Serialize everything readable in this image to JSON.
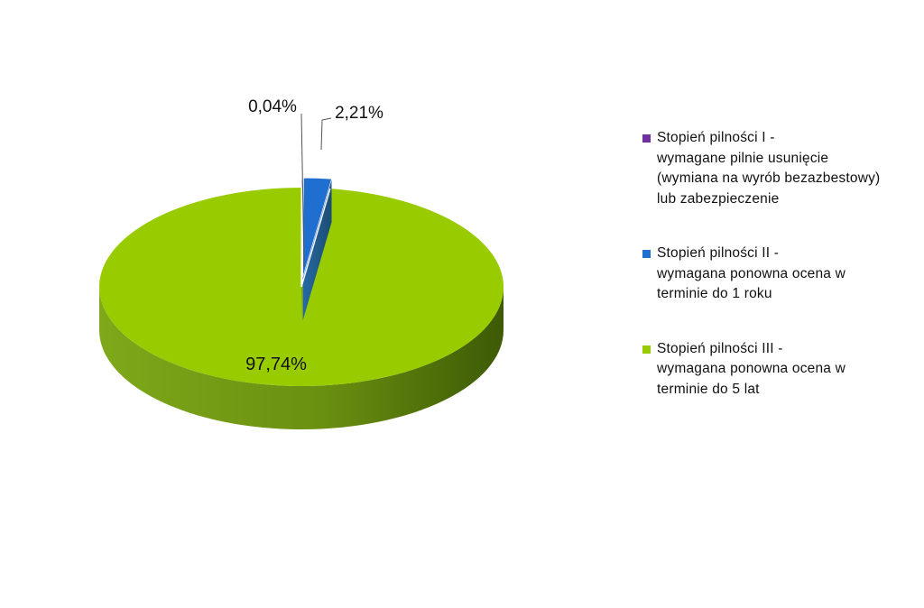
{
  "chart_data": {
    "type": "pie",
    "style": "3d-exploded",
    "categories": [
      "Stopień pilności I -\nwymagane pilnie usunięcie\n(wymiana na wyrób bezazbestowy)\nlub zabezpieczenie",
      "Stopień pilności II -\nwymagana ponowna ocena w\nterminie do 1 roku",
      "Stopień pilności III -\nwymagana ponowna ocena w\nterminie do 5 lat"
    ],
    "values": [
      0.04,
      2.21,
      97.74
    ],
    "data_labels": [
      "0,04%",
      "2,21%",
      "97,74%"
    ],
    "colors": [
      "#7030a0",
      "#1f6fd1",
      "#99cc00"
    ],
    "legend_position": "right"
  }
}
